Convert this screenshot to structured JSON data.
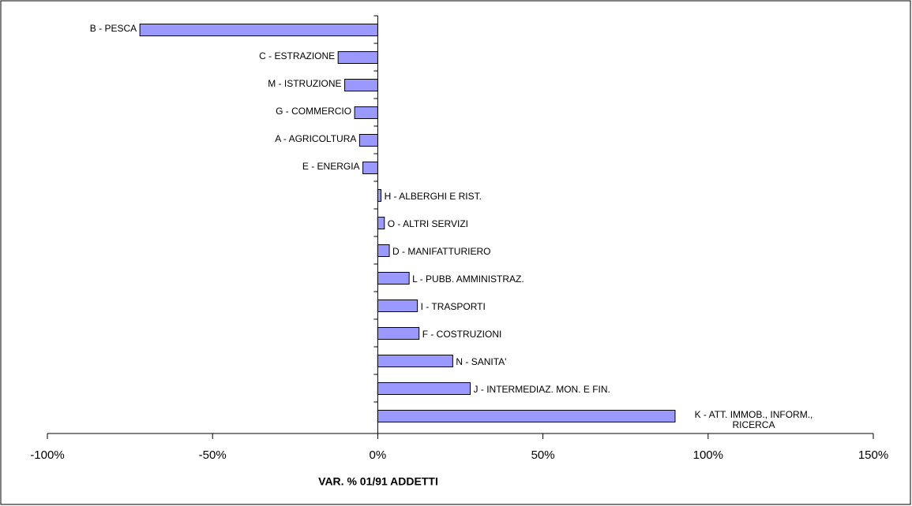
{
  "chart_data": {
    "type": "barh",
    "x_label": "VAR. % 01/91 ADDETTI",
    "categories": [
      "B - PESCA",
      "C - ESTRAZIONE",
      "M - ISTRUZIONE",
      "G - COMMERCIO",
      "A - AGRICOLTURA",
      "E - ENERGIA",
      "H - ALBERGHI E RIST.",
      "O - ALTRI SERVIZI",
      "D - MANIFATTURIERO",
      "L - PUBB. AMMINISTRAZ.",
      "I - TRASPORTI",
      "F - COSTRUZIONI",
      "N - SANITA'",
      "J - INTERMEDIAZ. MON. E FIN.",
      "K - ATT. IMMOB., INFORM., RICERCA"
    ],
    "values": [
      -72,
      -12,
      -10,
      -7,
      -5.5,
      -4.5,
      1,
      2,
      3.5,
      9.5,
      12,
      12.5,
      22.7,
      28,
      90
    ],
    "color": "#9999ff",
    "xlim": [
      -100,
      150
    ],
    "xticks": [
      {
        "value": -100,
        "label": "-100%"
      },
      {
        "value": -50,
        "label": "-50%"
      },
      {
        "value": 0,
        "label": "0%"
      },
      {
        "value": 50,
        "label": "50%"
      },
      {
        "value": 100,
        "label": "100%"
      },
      {
        "value": 150,
        "label": "150%"
      }
    ],
    "grid": false
  }
}
